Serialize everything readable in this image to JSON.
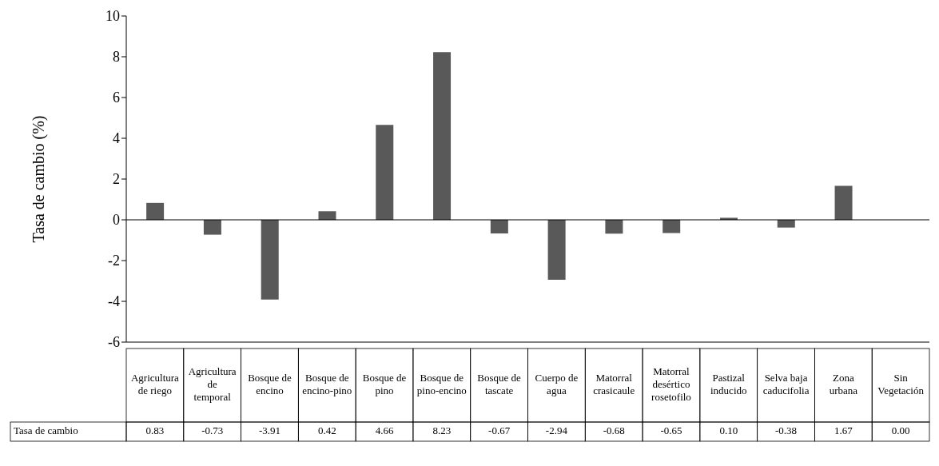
{
  "chart_data": {
    "type": "bar",
    "ylabel": "Tasa de cambio (%)",
    "categories": [
      "Agricultura de riego",
      "Agricultura de temporal",
      "Bosque de encino",
      "Bosque de encino-pino",
      "Bosque de pino",
      "Bosque de pino-encino",
      "Bosque de tascate",
      "Cuerpo de agua",
      "Matorral crasicaule",
      "Matorral desértico rosetofilo",
      "Pastizal inducido",
      "Selva baja caducifolia",
      "Zona urbana",
      "Sin Vegetación"
    ],
    "series": [
      {
        "name": "Tasa de cambio",
        "color": "#595959",
        "values": [
          0.83,
          -0.73,
          -3.91,
          0.42,
          4.66,
          8.23,
          -0.67,
          -2.94,
          -0.68,
          -0.65,
          0.1,
          -0.38,
          1.67,
          0.0
        ],
        "value_labels": [
          "0.83",
          "-0.73",
          "-3.91",
          "0.42",
          "4.66",
          "8.23",
          "-0.67",
          "-2.94",
          "-0.68",
          "-0.65",
          "0.10",
          "-0.38",
          "1.67",
          "0.00"
        ]
      }
    ],
    "ylim": [
      -6,
      10
    ],
    "yticks": [
      -6,
      -4,
      -2,
      0,
      2,
      4,
      6,
      8,
      10
    ]
  }
}
